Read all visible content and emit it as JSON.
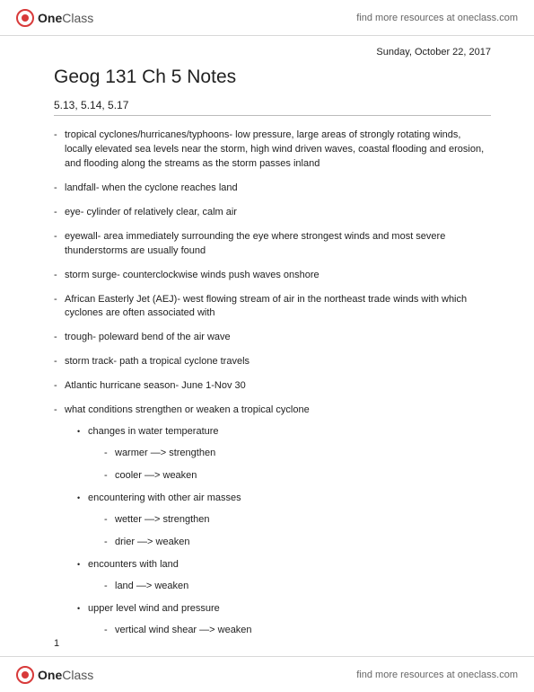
{
  "brand": {
    "name_bold": "One",
    "name_light": "Class",
    "link": "find more resources at oneclass.com"
  },
  "date": "Sunday, October 22, 2017",
  "title": "Geog 131 Ch 5 Notes",
  "subhead": "5.13, 5.14, 5.17",
  "bullets": [
    "tropical cyclones/hurricanes/typhoons- low pressure, large areas of strongly rotating winds, locally elevated sea levels near the storm, high wind driven waves, coastal flooding and erosion, and flooding along the streams as the storm passes inland",
    "landfall- when the cyclone reaches land",
    "eye- cylinder of relatively clear, calm air",
    "eyewall- area immediately surrounding the eye where strongest winds and most severe thunderstorms are usually found",
    "storm surge- counterclockwise winds push waves onshore",
    "African Easterly Jet (AEJ)- west flowing stream of air in the northeast trade winds with which cyclones are often associated with",
    "trough- poleward bend of the air wave",
    "storm track- path a tropical cyclone travels",
    "Atlantic hurricane season- June 1-Nov 30"
  ],
  "conditions_heading": "what conditions strengthen or weaken a tropical cyclone",
  "conditions": [
    {
      "label": "changes in water temperature",
      "items": [
        "warmer —> strengthen",
        "cooler —> weaken"
      ]
    },
    {
      "label": "encountering with other air masses",
      "items": [
        "wetter —> strengthen",
        "drier —> weaken"
      ]
    },
    {
      "label": "encounters with land",
      "items": [
        "land —> weaken"
      ]
    },
    {
      "label": "upper level wind and pressure",
      "items": [
        "vertical wind shear —> weaken"
      ]
    }
  ],
  "pagenum": "1"
}
